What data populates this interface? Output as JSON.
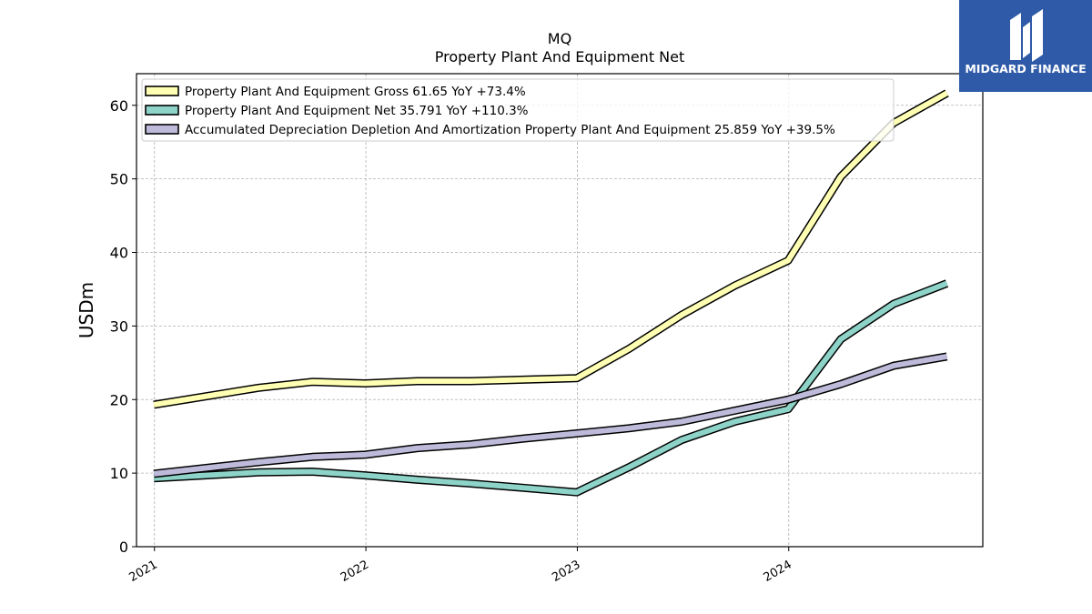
{
  "header": {
    "ticker": "MQ",
    "metric": "Property Plant And Equipment Net"
  },
  "logo": {
    "text": "MIDGARD FINANCE",
    "background": "#2f5aa8"
  },
  "chart_data": {
    "type": "line",
    "title": "MQ",
    "subtitle": "Property Plant And Equipment Net",
    "xlabel": "",
    "ylabel": "USDm",
    "x": [
      "2020-12-31",
      "2021-06-30",
      "2021-09-30",
      "2021-12-31",
      "2022-03-31",
      "2022-06-30",
      "2022-09-30",
      "2022-12-31",
      "2023-03-31",
      "2023-06-30",
      "2023-09-30",
      "2023-12-31",
      "2024-03-31",
      "2024-06-30",
      "2024-09-30"
    ],
    "xticks": [
      "2021",
      "2022",
      "2023",
      "2024"
    ],
    "yticks": [
      0,
      10,
      20,
      30,
      40,
      50,
      60
    ],
    "ylim": [
      0,
      64.3
    ],
    "grid": true,
    "legend_position": "top-left",
    "series": [
      {
        "name": "Property Plant And Equipment Gross  61.65 YoY +73.4%",
        "color": "#ffffb3",
        "values": [
          19.3,
          21.6,
          22.4,
          22.2,
          22.5,
          22.5,
          22.7,
          22.9,
          26.9,
          31.5,
          35.5,
          38.9,
          50.3,
          57.6,
          61.65
        ]
      },
      {
        "name": "Property Plant And Equipment Net  35.791 YoY +110.3%",
        "color": "#8dd3c7",
        "values": [
          9.3,
          10.1,
          10.2,
          9.7,
          9.1,
          8.6,
          8.0,
          7.4,
          10.8,
          14.5,
          17.0,
          18.7,
          28.2,
          33.0,
          35.791
        ]
      },
      {
        "name": "Accumulated Depreciation Depletion And Amortization Property Plant And Equipment  25.859 YoY +39.5%",
        "color": "#bebada",
        "values": [
          9.9,
          11.5,
          12.2,
          12.5,
          13.4,
          13.9,
          14.7,
          15.4,
          16.1,
          17.0,
          18.5,
          20.0,
          22.1,
          24.6,
          25.859
        ]
      }
    ]
  }
}
